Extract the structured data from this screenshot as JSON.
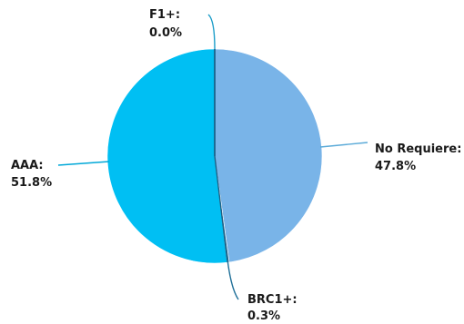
{
  "chart_data": {
    "type": "pie",
    "title": "",
    "legend": "none",
    "slices": [
      {
        "name": "No Requiere",
        "label": "No Requiere:",
        "value_label": "47.8%",
        "value": 47.8,
        "color": "#79b4e8",
        "leader_color": "#5aaad8"
      },
      {
        "name": "BRC1+",
        "label": "BRC1+:",
        "value_label": "0.3%",
        "value": 0.3,
        "color": "#1f6f98",
        "leader_color": "#1f6f98"
      },
      {
        "name": "AAA",
        "label": "AAA:",
        "value_label": "51.8%",
        "value": 51.8,
        "color": "#00bff3",
        "leader_color": "#00a8d8"
      },
      {
        "name": "F1+",
        "label": "F1+:",
        "value_label": "0.0%",
        "value": 0.0,
        "color": "#005b8a",
        "leader_color": "#1a9cc8"
      }
    ]
  }
}
